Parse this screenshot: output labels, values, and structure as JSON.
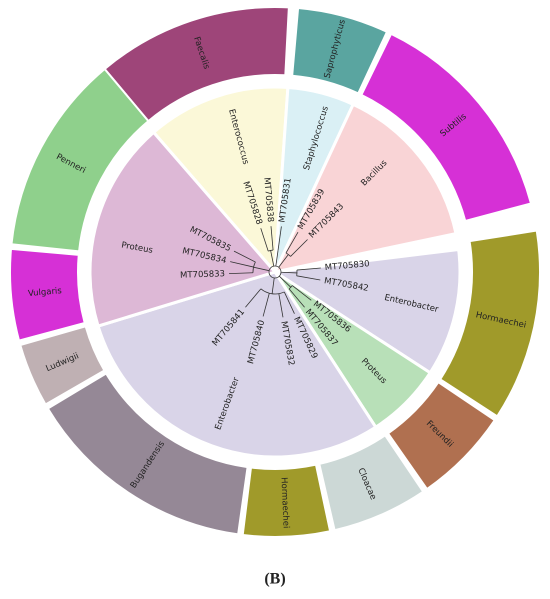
{
  "sectors": [
    {
      "label": "Enterococcus",
      "leaves": [
        "MT705838",
        "MT705828"
      ]
    },
    {
      "label": "Staphylococcus",
      "leaves": [
        "MT705831"
      ]
    },
    {
      "label": "Bacillus",
      "leaves": [
        "MT705839",
        "MT705843"
      ]
    },
    {
      "label": "Enterobacter",
      "leaves": [
        "MT705830",
        "MT705842"
      ]
    },
    {
      "label": "Proteus",
      "leaves": [
        "MT705836",
        "MT705837"
      ]
    },
    {
      "label": "Enterobacter",
      "leaves": [
        "MT705829",
        "MT705832",
        "MT705840",
        "MT705841"
      ]
    },
    {
      "label": "Proteus",
      "leaves": [
        "MT705833",
        "MT705834",
        "MT705835"
      ]
    }
  ],
  "outer_ring": [
    {
      "label": "Faecalis"
    },
    {
      "label": "Saprophyticus"
    },
    {
      "label": "Subtilis"
    },
    {
      "label": "Hormaechei"
    },
    {
      "label": "Freundii"
    },
    {
      "label": "Cloacae"
    },
    {
      "label": "Hormaechei"
    },
    {
      "label": "Bugandensis"
    },
    {
      "label": "Ludwigii"
    },
    {
      "label": "Vulgaris"
    },
    {
      "label": "Penneri"
    }
  ],
  "caption": "(B)"
}
